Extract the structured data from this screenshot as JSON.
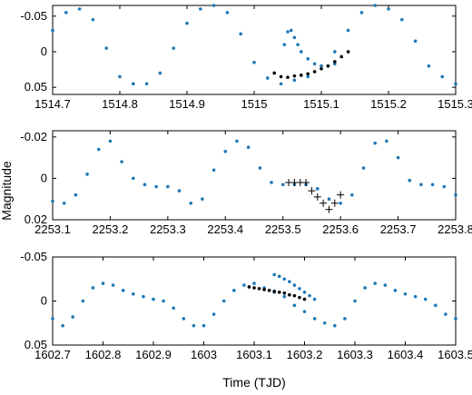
{
  "figure": {
    "xlabel": "Time  (TJD)",
    "ylabel": "Magnitude",
    "colors": {
      "main_series": "#1f77b4",
      "highlight_series": "#000000",
      "axes": "#000000",
      "background": "#ffffff"
    }
  },
  "chart_data": [
    {
      "type": "scatter",
      "xlim": [
        1514.7,
        1515.3
      ],
      "ylim": [
        0.06,
        -0.065
      ],
      "y_reversed": true,
      "xticks": [
        "1514.7",
        "1514.8",
        "1514.9",
        "1515",
        "1515.1",
        "1515.2",
        "1515.3"
      ],
      "xtick_values": [
        1514.7,
        1514.8,
        1514.9,
        1515.0,
        1515.1,
        1515.2,
        1515.3
      ],
      "yticks": [
        "-0.05",
        "0",
        "0.05"
      ],
      "ytick_values": [
        -0.05,
        0,
        0.05
      ],
      "series": [
        {
          "marker": "dot",
          "color": "#1f77b4",
          "x": [
            1514.7,
            1514.72,
            1514.74,
            1514.76,
            1514.78,
            1514.8,
            1514.82,
            1514.84,
            1514.86,
            1514.88,
            1514.9,
            1514.92,
            1514.94,
            1514.96,
            1514.98,
            1515.0,
            1515.02,
            1515.04,
            1515.06,
            1515.08,
            1515.1,
            1515.12,
            1515.14,
            1515.16,
            1515.18,
            1515.2,
            1515.22,
            1515.24,
            1515.26,
            1515.28,
            1515.3
          ],
          "y": [
            -0.03,
            -0.055,
            -0.06,
            -0.045,
            -0.005,
            0.035,
            0.045,
            0.045,
            0.03,
            -0.005,
            -0.04,
            -0.06,
            -0.065,
            -0.055,
            -0.025,
            0.015,
            0.037,
            0.045,
            0.04,
            0.035,
            0.02,
            0.0,
            -0.03,
            -0.055,
            -0.065,
            -0.06,
            -0.045,
            -0.015,
            0.02,
            0.035,
            0.045
          ]
        },
        {
          "marker": "dot",
          "color": "#1f77b4",
          "x": [
            1515.045,
            1515.05,
            1515.055,
            1515.06,
            1515.065,
            1515.07,
            1515.08,
            1515.09,
            1515.1,
            1515.11,
            1515.12
          ],
          "y": [
            -0.01,
            -0.028,
            -0.03,
            -0.02,
            -0.01,
            0.0,
            0.01,
            0.017,
            0.02,
            0.02,
            0.017
          ]
        },
        {
          "marker": "dot",
          "color": "#000000",
          "x": [
            1515.03,
            1515.04,
            1515.05,
            1515.06,
            1515.07,
            1515.08,
            1515.09,
            1515.1,
            1515.11,
            1515.12,
            1515.13,
            1515.14
          ],
          "y": [
            0.03,
            0.035,
            0.036,
            0.034,
            0.033,
            0.031,
            0.028,
            0.024,
            0.02,
            0.014,
            0.007,
            0.0
          ]
        }
      ]
    },
    {
      "type": "scatter",
      "xlim": [
        2253.1,
        2253.8
      ],
      "ylim": [
        0.02,
        -0.023
      ],
      "y_reversed": true,
      "xticks": [
        "2253.1",
        "2253.2",
        "2253.3",
        "2253.4",
        "2253.5",
        "2253.6",
        "2253.7",
        "2253.8"
      ],
      "xtick_values": [
        2253.1,
        2253.2,
        2253.3,
        2253.4,
        2253.5,
        2253.6,
        2253.7,
        2253.8
      ],
      "yticks": [
        "-0.02",
        "0",
        "0.02"
      ],
      "ytick_values": [
        -0.02,
        0,
        0.02
      ],
      "series": [
        {
          "marker": "dot",
          "color": "#1f77b4",
          "x": [
            2253.1,
            2253.12,
            2253.14,
            2253.16,
            2253.18,
            2253.2,
            2253.22,
            2253.24,
            2253.26,
            2253.28,
            2253.3,
            2253.32,
            2253.34,
            2253.36,
            2253.38,
            2253.4,
            2253.42,
            2253.44,
            2253.46,
            2253.48,
            2253.5,
            2253.52,
            2253.54,
            2253.56,
            2253.58,
            2253.6,
            2253.62,
            2253.64,
            2253.66,
            2253.68,
            2253.7,
            2253.72,
            2253.74,
            2253.76,
            2253.78,
            2253.8
          ],
          "y": [
            0.011,
            0.012,
            0.008,
            -0.002,
            -0.014,
            -0.018,
            -0.008,
            0.0,
            0.003,
            0.004,
            0.004,
            0.006,
            0.012,
            0.01,
            -0.004,
            -0.013,
            -0.018,
            -0.015,
            -0.005,
            0.002,
            0.003,
            0.003,
            0.003,
            0.005,
            0.01,
            0.012,
            0.008,
            -0.005,
            -0.017,
            -0.018,
            -0.01,
            0.001,
            0.003,
            0.003,
            0.004,
            0.008
          ]
        },
        {
          "marker": "plus",
          "color": "#000000",
          "x": [
            2253.51,
            2253.52,
            2253.53,
            2253.54,
            2253.55,
            2253.56,
            2253.57,
            2253.58,
            2253.59,
            2253.6
          ],
          "y": [
            0.002,
            0.002,
            0.002,
            0.002,
            0.006,
            0.009,
            0.012,
            0.015,
            0.012,
            0.008
          ]
        }
      ]
    },
    {
      "type": "scatter",
      "xlim": [
        1602.7,
        1603.5
      ],
      "ylim": [
        0.05,
        -0.05
      ],
      "y_reversed": true,
      "xticks": [
        "1602.7",
        "1602.8",
        "1602.9",
        "1603",
        "1603.1",
        "1603.2",
        "1603.3",
        "1603.4",
        "1603.5"
      ],
      "xtick_values": [
        1602.7,
        1602.8,
        1602.9,
        1603.0,
        1603.1,
        1603.2,
        1603.3,
        1603.4,
        1603.5
      ],
      "yticks": [
        "-0.05",
        "0",
        "0.05"
      ],
      "ytick_values": [
        -0.05,
        0,
        0.05
      ],
      "series": [
        {
          "marker": "dot",
          "color": "#1f77b4",
          "x": [
            1602.7,
            1602.72,
            1602.74,
            1602.76,
            1602.78,
            1602.8,
            1602.82,
            1602.84,
            1602.86,
            1602.88,
            1602.9,
            1602.92,
            1602.94,
            1602.96,
            1602.98,
            1603.0,
            1603.02,
            1603.04,
            1603.06,
            1603.08,
            1603.1,
            1603.12,
            1603.14,
            1603.16,
            1603.18,
            1603.2,
            1603.22,
            1603.24,
            1603.26,
            1603.28,
            1603.3,
            1603.32,
            1603.34,
            1603.36,
            1603.38,
            1603.4,
            1603.42,
            1603.44,
            1603.46,
            1603.48,
            1603.5
          ],
          "y": [
            0.02,
            0.028,
            0.018,
            0.0,
            -0.015,
            -0.02,
            -0.018,
            -0.012,
            -0.008,
            -0.005,
            -0.002,
            0.0,
            0.008,
            0.02,
            0.028,
            0.028,
            0.015,
            0.0,
            -0.012,
            -0.018,
            -0.02,
            -0.015,
            -0.01,
            -0.005,
            0.005,
            0.012,
            0.02,
            0.025,
            0.028,
            0.02,
            0.0,
            -0.015,
            -0.02,
            -0.018,
            -0.012,
            -0.008,
            -0.005,
            -0.002,
            0.005,
            0.015,
            0.02
          ]
        },
        {
          "marker": "dot",
          "color": "#1f77b4",
          "x": [
            1603.14,
            1603.15,
            1603.16,
            1603.17,
            1603.18,
            1603.19,
            1603.2,
            1603.21,
            1603.22
          ],
          "y": [
            -0.03,
            -0.028,
            -0.025,
            -0.022,
            -0.018,
            -0.014,
            -0.01,
            -0.006,
            -0.002
          ]
        },
        {
          "marker": "dot",
          "color": "#000000",
          "x": [
            1603.09,
            1603.1,
            1603.11,
            1603.12,
            1603.13,
            1603.14,
            1603.15,
            1603.16,
            1603.17,
            1603.18,
            1603.19,
            1603.2
          ],
          "y": [
            -0.016,
            -0.015,
            -0.014,
            -0.013,
            -0.012,
            -0.011,
            -0.01,
            -0.009,
            -0.007,
            -0.006,
            -0.004,
            -0.002
          ]
        }
      ]
    }
  ]
}
